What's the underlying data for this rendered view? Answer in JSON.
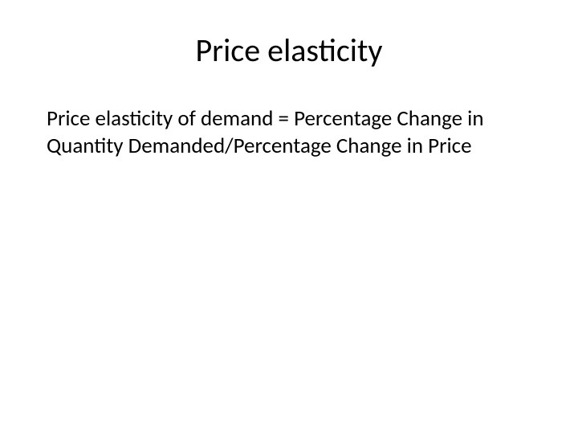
{
  "slide": {
    "title": "Price elasticity",
    "body": "Price elasticity of demand = Percentage Change in Quantity Demanded/Percentage Change in Price",
    "title_fontsize": 40,
    "body_fontsize": 27,
    "title_color": "#000000",
    "body_color": "#000000",
    "background_color": "#ffffff"
  }
}
